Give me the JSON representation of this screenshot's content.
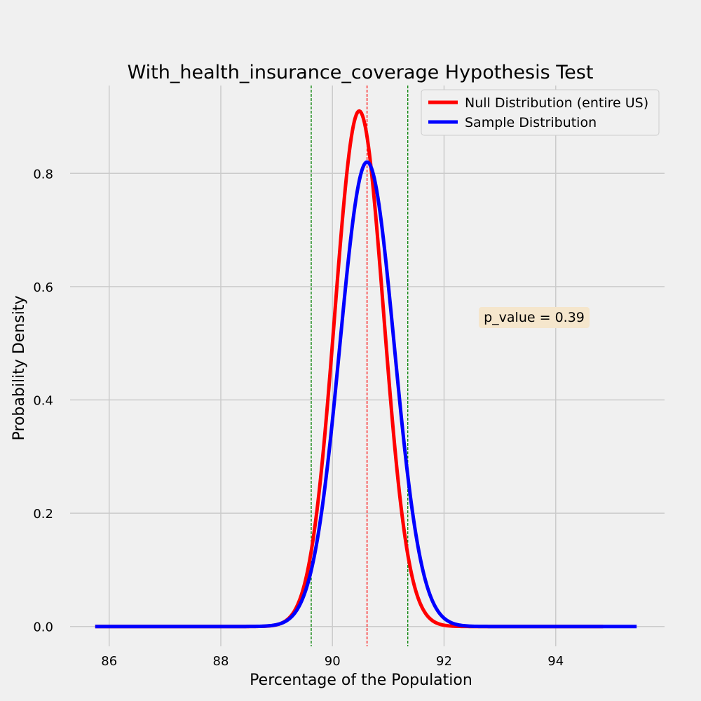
{
  "chart_data": {
    "type": "line",
    "title": "With_health_insurance_coverage Hypothesis Test",
    "xlabel": "Percentage of the Population",
    "ylabel": "Probability Density",
    "xlim": [
      85.3,
      95.95
    ],
    "ylim": [
      -0.035,
      0.955
    ],
    "xticks": [
      86,
      88,
      90,
      92,
      94
    ],
    "yticks": [
      0.0,
      0.2,
      0.4,
      0.6,
      0.8
    ],
    "grid": true,
    "legend_position": "top-right",
    "series": [
      {
        "name": "Null Distribution (entire US)",
        "color": "#ff0000",
        "mean": 90.48,
        "peak_density": 0.91,
        "x_range": [
          85.75,
          94.85
        ]
      },
      {
        "name": "Sample Distribution",
        "color": "#0000ff",
        "mean": 90.62,
        "peak_density": 0.82,
        "x_range": [
          85.75,
          95.45
        ]
      }
    ],
    "vertical_lines": [
      {
        "x": 89.62,
        "color": "#008000",
        "style": "dashed"
      },
      {
        "x": 90.62,
        "color": "#ff0000",
        "style": "dashed"
      },
      {
        "x": 91.35,
        "color": "#008000",
        "style": "dashed"
      }
    ],
    "annotation": {
      "text": "p_value = 0.39",
      "x": 93.45,
      "y": 0.545,
      "background": "#f5e6cc"
    }
  }
}
